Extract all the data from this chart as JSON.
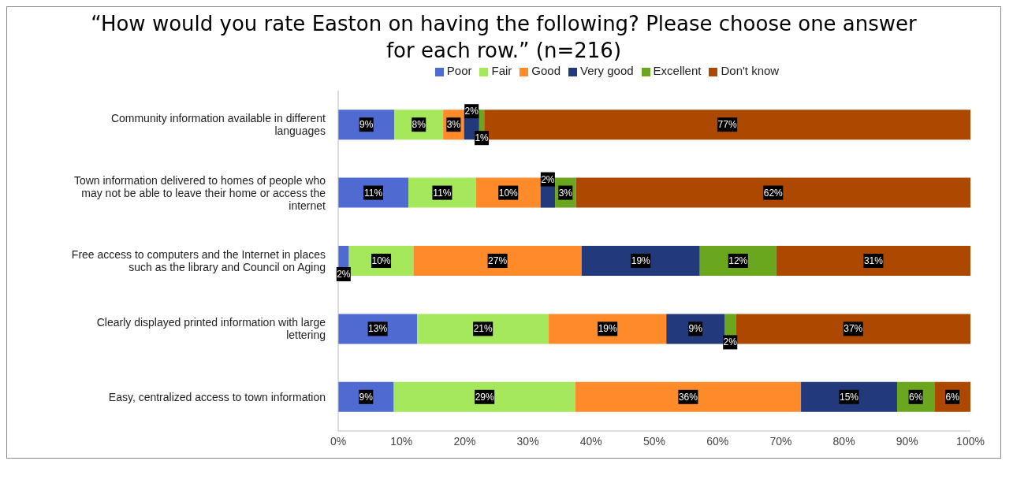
{
  "chart_data": {
    "type": "bar",
    "orientation": "horizontal",
    "stacked": true,
    "title": "“How would you rate Easton on having the following? Please choose one answer for each row.” (n=216)",
    "categories": [
      "Community information available in different languages",
      "Town information delivered to homes of people who may not be able to leave their home or access the internet",
      "Free access to computers and the Internet in places such as the library and Council on Aging",
      "Clearly displayed printed information with large lettering",
      "Easy, centralized access to town information"
    ],
    "series": [
      {
        "name": "Poor",
        "color": "#4f6ad0",
        "values": [
          8.9,
          11.1,
          1.7,
          12.5,
          8.8
        ],
        "value_labels": [
          "9%",
          "11%",
          "2%",
          "13%",
          "9%"
        ]
      },
      {
        "name": "Fair",
        "color": "#a6e85c",
        "values": [
          7.7,
          10.7,
          10.2,
          20.8,
          28.7
        ],
        "value_labels": [
          "8%",
          "11%",
          "10%",
          "21%",
          "29%"
        ]
      },
      {
        "name": "Good",
        "color": "#ff8a2a",
        "values": [
          3.3,
          10.2,
          26.6,
          18.6,
          35.7
        ],
        "value_labels": [
          "3%",
          "10%",
          "27%",
          "19%",
          "36%"
        ]
      },
      {
        "name": "Very good",
        "color": "#22397c",
        "values": [
          2.4,
          2.3,
          18.7,
          9.2,
          15.2
        ],
        "value_labels": [
          "2%",
          "2%",
          "19%",
          "9%",
          "15%"
        ]
      },
      {
        "name": "Excellent",
        "color": "#6aa61e",
        "values": [
          0.8,
          3.3,
          12.1,
          1.8,
          5.9
        ],
        "value_labels": [
          "1%",
          "3%",
          "12%",
          "2%",
          "6%"
        ]
      },
      {
        "name": "Don't know",
        "color": "#ad4800",
        "values": [
          76.9,
          62.4,
          30.7,
          37.1,
          5.7
        ],
        "value_labels": [
          "77%",
          "62%",
          "31%",
          "37%",
          "6%"
        ]
      }
    ],
    "xlim": [
      0,
      100
    ],
    "xticks": [
      {
        "value": 0,
        "label": "0%"
      },
      {
        "value": 10,
        "label": "10%"
      },
      {
        "value": 20,
        "label": "20%"
      },
      {
        "value": 30,
        "label": "30%"
      },
      {
        "value": 40,
        "label": "40%"
      },
      {
        "value": 50,
        "label": "50%"
      },
      {
        "value": 60,
        "label": "60%"
      },
      {
        "value": 70,
        "label": "70%"
      },
      {
        "value": 80,
        "label": "80%"
      },
      {
        "value": 90,
        "label": "90%"
      },
      {
        "value": 100,
        "label": "100%"
      }
    ],
    "grid": false,
    "legend": "top"
  }
}
